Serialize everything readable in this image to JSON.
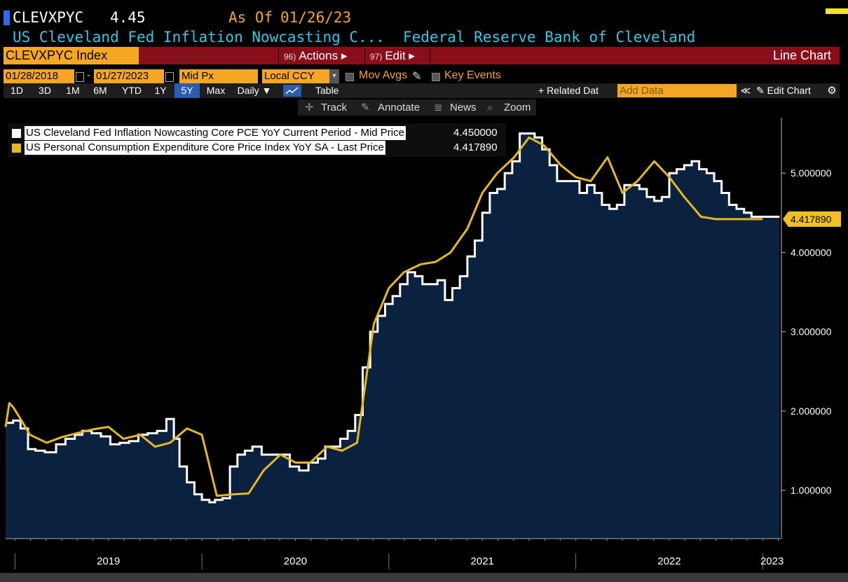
{
  "header": {
    "ticker": "CLEVXPYC",
    "price": "4.45",
    "as_of_label": "As Of",
    "as_of_date": "01/26/23",
    "name": "US Cleveland Fed Inflation Nowcasting C...",
    "source": "Federal Reserve Bank of Cleveland"
  },
  "menubar": {
    "index": "CLEVXPYC Index",
    "suggested_num": "94)",
    "suggested": "Suggested Charts",
    "actions_num": "96)",
    "actions": "Actions ▸",
    "edit_num": "97)",
    "edit": "Edit ▸",
    "chart_type": "Line Chart"
  },
  "controls": {
    "start_date": "01/28/2018",
    "dash": "-",
    "end_date": "01/27/2023",
    "price_field": "Mid Px",
    "currency": "Local CCY",
    "mov_avgs": "Mov Avgs",
    "key_events": "Key Events"
  },
  "periods": [
    "1D",
    "3D",
    "1M",
    "6M",
    "YTD",
    "1Y",
    "5Y",
    "Max"
  ],
  "selected_period": "5Y",
  "toolbar": {
    "frequency": "Daily ▼",
    "table": "Table",
    "related": "+ Related Dat",
    "add_data_placeholder": "Add Data",
    "collapse": "≪",
    "edit_chart": "✎ Edit Chart",
    "settings_icon": "gear-icon"
  },
  "tools": [
    "Track",
    "Annotate",
    "News",
    "Zoom"
  ],
  "tool_icons": [
    "crosshair-icon",
    "pencil-icon",
    "news-icon",
    "magnifier-icon"
  ],
  "legend": [
    {
      "label": "US Cleveland Fed Inflation Nowcasting Core PCE YoY Current Period - Mid Price",
      "value": "4.450000",
      "color": "#ffffff"
    },
    {
      "label": "US Personal Consumption Expenditure Core Price Index YoY SA - Last Price",
      "value": "4.417890",
      "color": "#e6b820"
    }
  ],
  "colors": {
    "accent_orange": "#f5a623",
    "menubar_red": "#8a0e1a",
    "area_fill": "#0a2140",
    "nowcast_line": "#ffffff",
    "pce_line": "#e6b820",
    "title_cyan": "#38c6e8"
  },
  "chart_data": {
    "type": "line",
    "ylim": [
      0.4,
      5.7
    ],
    "xlim": [
      2018.95,
      2023.1
    ],
    "y_ticks": [
      "1.000000",
      "2.000000",
      "3.000000",
      "4.000000",
      "5.000000"
    ],
    "x_year_labels": [
      "2019",
      "2020",
      "2021",
      "2022",
      "2023"
    ],
    "last_value_label": "4.417890",
    "series": [
      {
        "name": "US Cleveland Fed Inflation Nowcasting Core PCE YoY Current Period - Mid Price",
        "style": "step-area",
        "x": [
          2018.95,
          2018.99,
          2019.03,
          2019.07,
          2019.11,
          2019.16,
          2019.22,
          2019.27,
          2019.32,
          2019.36,
          2019.41,
          2019.46,
          2019.51,
          2019.56,
          2019.61,
          2019.66,
          2019.71,
          2019.76,
          2019.81,
          2019.85,
          2019.88,
          2019.92,
          2019.96,
          2020.0,
          2020.04,
          2020.07,
          2020.11,
          2020.15,
          2020.19,
          2020.23,
          2020.27,
          2020.32,
          2020.37,
          2020.42,
          2020.47,
          2020.52,
          2020.57,
          2020.62,
          2020.66,
          2020.7,
          2020.74,
          2020.78,
          2020.82,
          2020.86,
          2020.9,
          2020.94,
          2020.98,
          2021.02,
          2021.06,
          2021.1,
          2021.14,
          2021.18,
          2021.22,
          2021.26,
          2021.3,
          2021.34,
          2021.38,
          2021.42,
          2021.46,
          2021.5,
          2021.54,
          2021.58,
          2021.62,
          2021.66,
          2021.7,
          2021.74,
          2021.78,
          2021.82,
          2021.86,
          2021.9,
          2021.94,
          2021.98,
          2022.02,
          2022.06,
          2022.1,
          2022.14,
          2022.18,
          2022.22,
          2022.26,
          2022.3,
          2022.34,
          2022.38,
          2022.42,
          2022.46,
          2022.5,
          2022.54,
          2022.58,
          2022.62,
          2022.66,
          2022.7,
          2022.74,
          2022.78,
          2022.82,
          2022.86,
          2022.9,
          2022.94,
          2022.98,
          2023.02,
          2023.06
        ],
        "values": [
          1.85,
          1.88,
          1.78,
          1.52,
          1.5,
          1.48,
          1.58,
          1.65,
          1.7,
          1.75,
          1.72,
          1.68,
          1.58,
          1.6,
          1.62,
          1.7,
          1.72,
          1.75,
          1.9,
          1.65,
          1.3,
          1.1,
          0.95,
          0.88,
          0.85,
          0.88,
          0.9,
          1.3,
          1.45,
          1.5,
          1.55,
          1.45,
          1.45,
          1.45,
          1.3,
          1.25,
          1.35,
          1.4,
          1.55,
          1.55,
          1.65,
          1.75,
          1.95,
          2.55,
          3.0,
          3.2,
          3.35,
          3.45,
          3.6,
          3.75,
          3.7,
          3.6,
          3.6,
          3.65,
          3.4,
          3.55,
          3.7,
          3.95,
          4.15,
          4.5,
          4.75,
          4.8,
          5.0,
          5.15,
          5.5,
          5.5,
          5.45,
          5.3,
          5.1,
          4.9,
          4.9,
          4.9,
          4.75,
          4.85,
          4.75,
          4.6,
          4.55,
          4.6,
          4.85,
          4.85,
          4.8,
          4.7,
          4.65,
          4.7,
          5.0,
          5.05,
          5.1,
          5.15,
          5.05,
          5.0,
          4.9,
          4.75,
          4.6,
          4.55,
          4.5,
          4.45,
          4.45,
          4.45,
          4.45
        ]
      },
      {
        "name": "US Personal Consumption Expenditure Core Price Index YoY SA - Last Price",
        "style": "line",
        "x": [
          2018.95,
          2018.97,
          2018.99,
          2019.03,
          2019.08,
          2019.17,
          2019.25,
          2019.33,
          2019.42,
          2019.5,
          2019.58,
          2019.67,
          2019.75,
          2019.83,
          2019.92,
          2020.0,
          2020.08,
          2020.17,
          2020.25,
          2020.33,
          2020.42,
          2020.5,
          2020.58,
          2020.67,
          2020.75,
          2020.83,
          2020.92,
          2021.0,
          2021.08,
          2021.17,
          2021.25,
          2021.33,
          2021.42,
          2021.5,
          2021.58,
          2021.67,
          2021.75,
          2021.83,
          2021.92,
          2022.0,
          2022.08,
          2022.17,
          2022.25,
          2022.33,
          2022.42,
          2022.5,
          2022.58,
          2022.67,
          2022.75,
          2022.83,
          2022.92,
          2023.0
        ],
        "values": [
          1.8,
          2.1,
          2.05,
          1.9,
          1.7,
          1.6,
          1.67,
          1.72,
          1.77,
          1.8,
          1.65,
          1.7,
          1.55,
          1.6,
          1.78,
          1.7,
          0.93,
          0.95,
          0.96,
          1.25,
          1.45,
          1.35,
          1.35,
          1.55,
          1.5,
          1.6,
          3.1,
          3.55,
          3.75,
          3.85,
          3.88,
          4.0,
          4.3,
          4.75,
          5.0,
          5.2,
          5.45,
          5.35,
          5.1,
          4.95,
          4.9,
          5.2,
          4.75,
          4.9,
          5.15,
          4.95,
          4.7,
          4.45,
          4.42,
          4.42,
          4.42,
          4.42
        ]
      }
    ]
  }
}
